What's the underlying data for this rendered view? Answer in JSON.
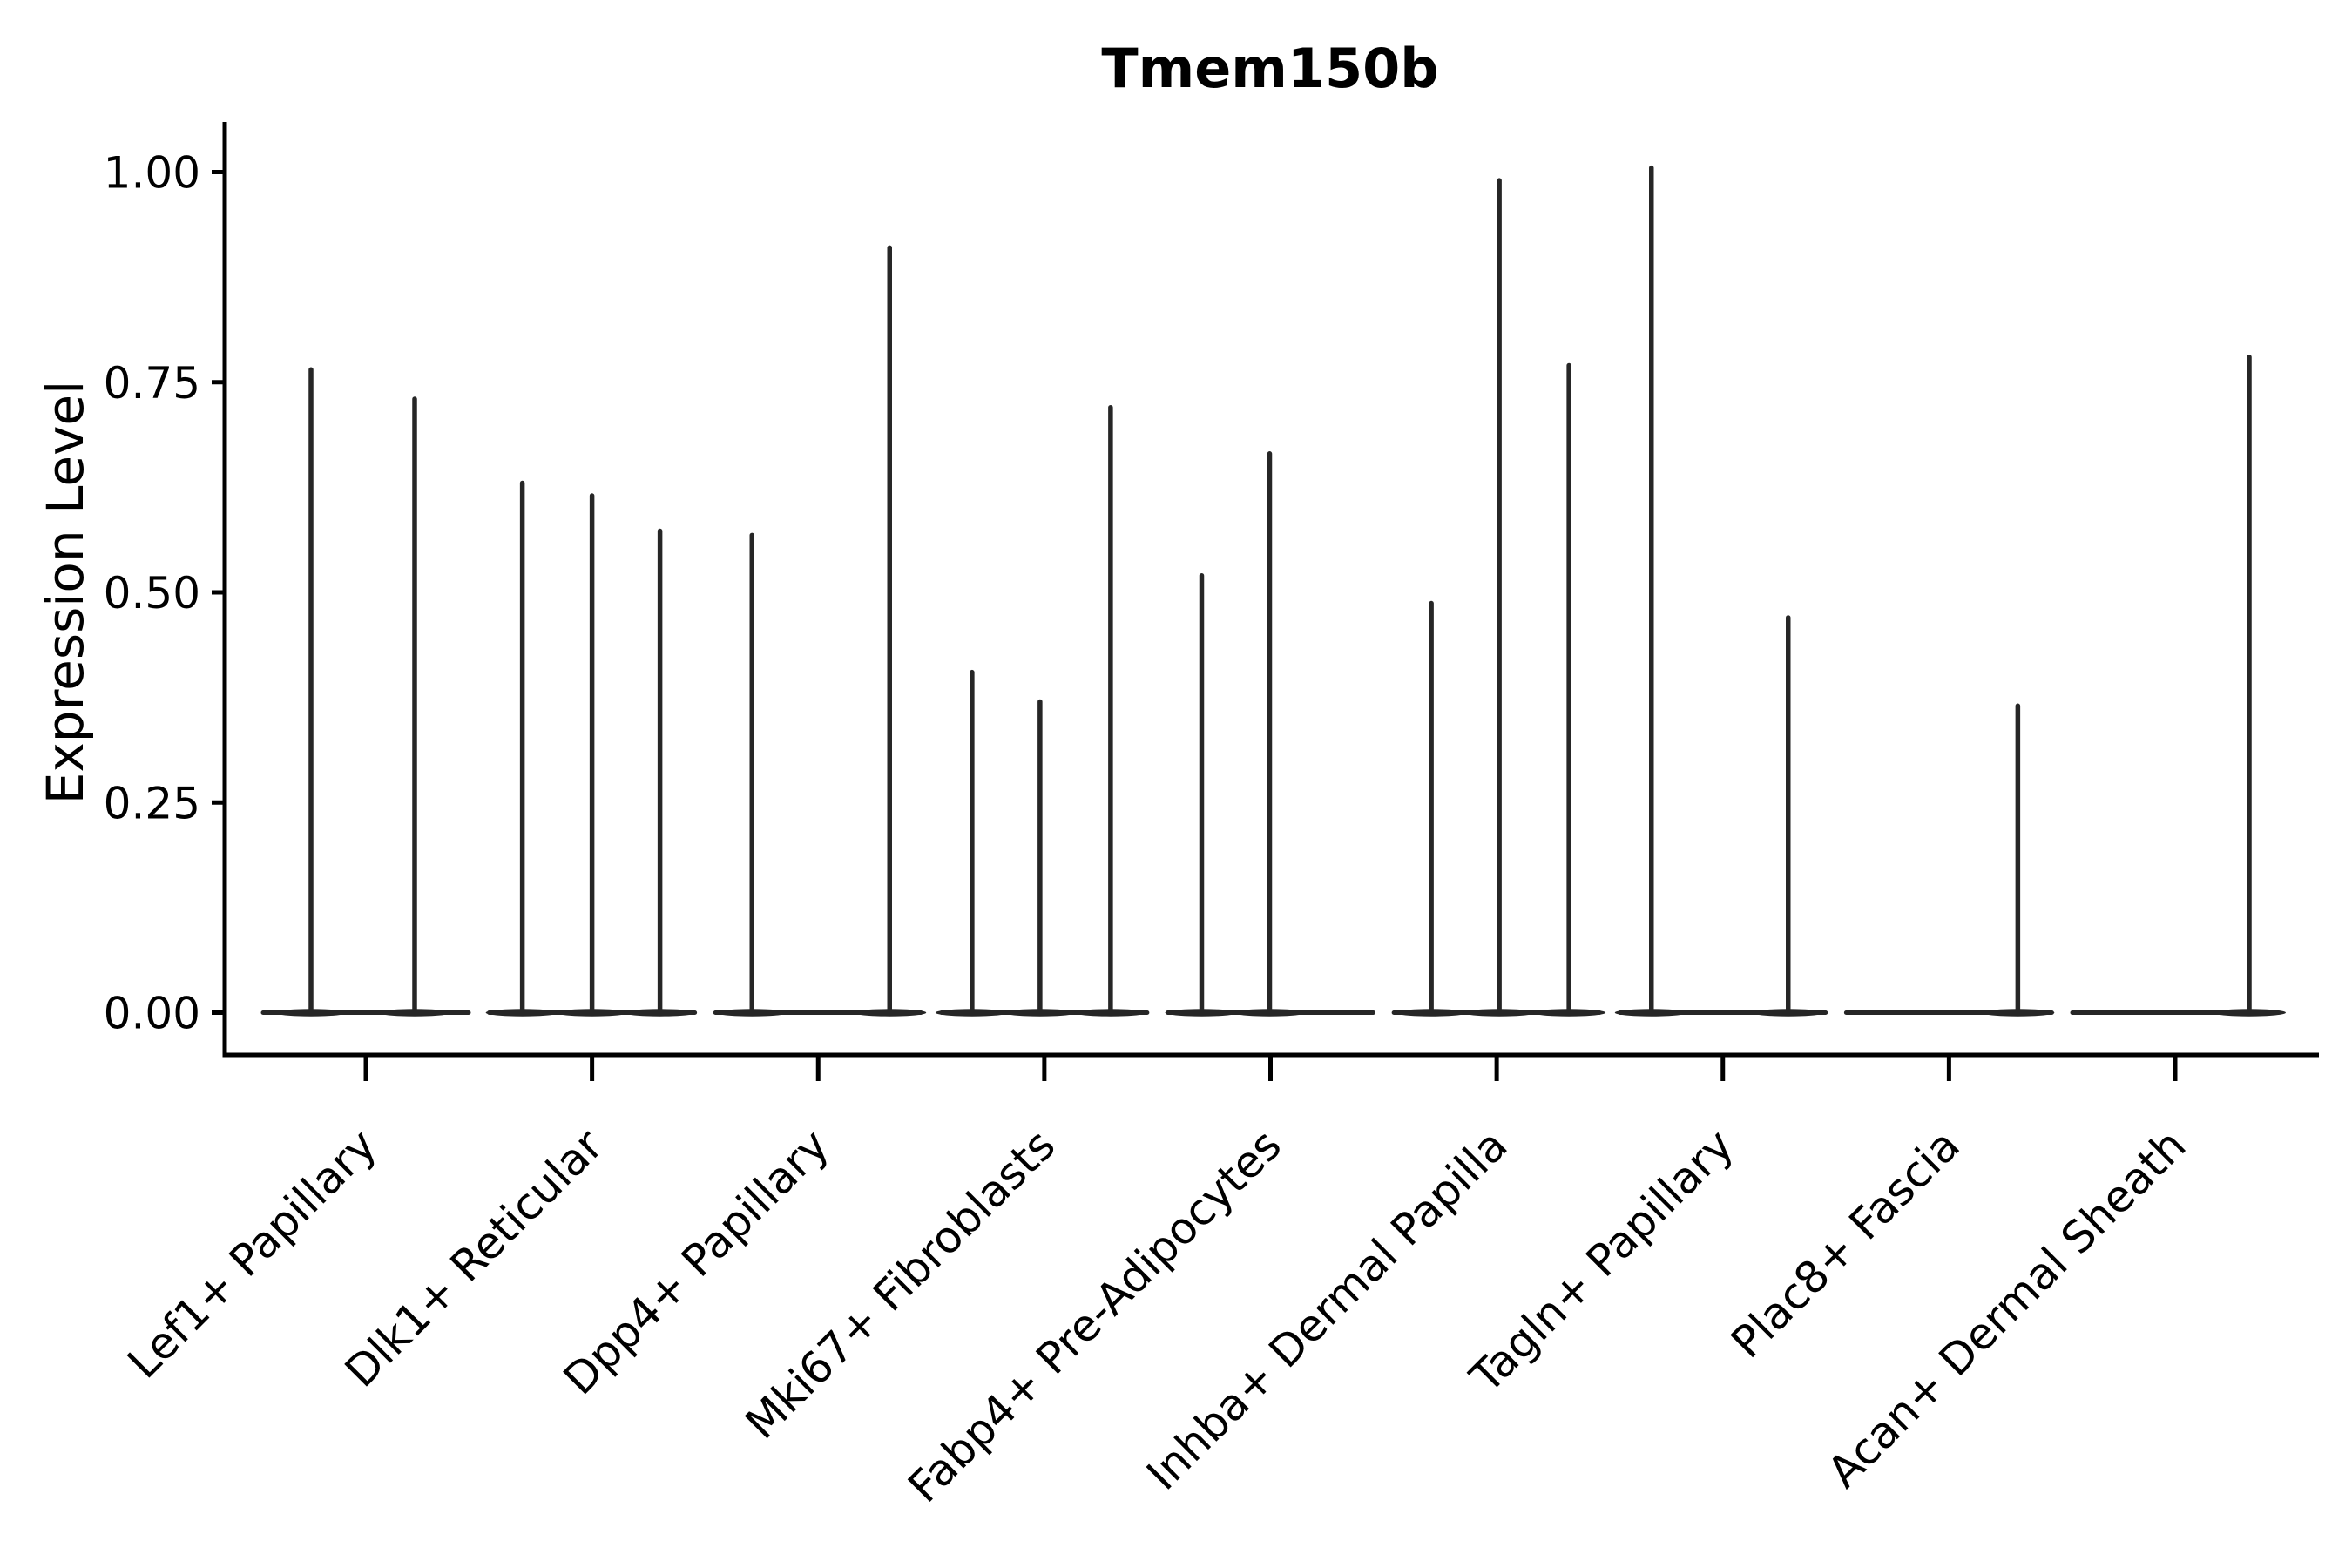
{
  "chart_data": {
    "type": "violin",
    "title": "Tmem150b",
    "ylabel": "Expression Level",
    "xlabel": "",
    "ylim": [
      -0.05,
      1.06
    ],
    "y_ticks": [
      "0.00",
      "0.25",
      "0.50",
      "0.75",
      "1.00"
    ],
    "grid": false,
    "legend": "none",
    "ink_color": "#262626",
    "axis_color": "#000000",
    "categories": [
      "Lef1+ Papillary",
      "Dlk1+ Reticular",
      "Dpp4+ Papillary",
      "Mki67+ Fibroblasts",
      "Fabp4+ Pre-Adipocytes",
      "Inhba+ Dermal Papilla",
      "Tagln+ Papillary",
      "Plac8+ Fascia",
      "Acan+ Dermal Sheath"
    ],
    "groups": [
      {
        "peaks": [
          {
            "dx": -63,
            "value": 0.765
          },
          {
            "dx": 56,
            "value": 0.73
          }
        ]
      },
      {
        "peaks": [
          {
            "dx": -80,
            "value": 0.63
          },
          {
            "dx": 0,
            "value": 0.615
          },
          {
            "dx": 78,
            "value": 0.573
          }
        ]
      },
      {
        "peaks": [
          {
            "dx": -76,
            "value": 0.568
          },
          {
            "dx": 82,
            "value": 0.91
          }
        ]
      },
      {
        "peaks": [
          {
            "dx": -83,
            "value": 0.405
          },
          {
            "dx": -5,
            "value": 0.37
          },
          {
            "dx": 76,
            "value": 0.72
          }
        ]
      },
      {
        "peaks": [
          {
            "dx": -79,
            "value": 0.52
          },
          {
            "dx": -1,
            "value": 0.665
          }
        ]
      },
      {
        "peaks": [
          {
            "dx": -75,
            "value": 0.487
          },
          {
            "dx": 3,
            "value": 0.99
          },
          {
            "dx": 83,
            "value": 0.77
          }
        ]
      },
      {
        "peaks": [
          {
            "dx": -82,
            "value": 1.005
          },
          {
            "dx": 75,
            "value": 0.47
          }
        ]
      },
      {
        "peaks": [
          {
            "dx": 79,
            "value": 0.365
          }
        ]
      },
      {
        "peaks": [
          {
            "dx": 85,
            "value": 0.78
          }
        ]
      }
    ]
  }
}
